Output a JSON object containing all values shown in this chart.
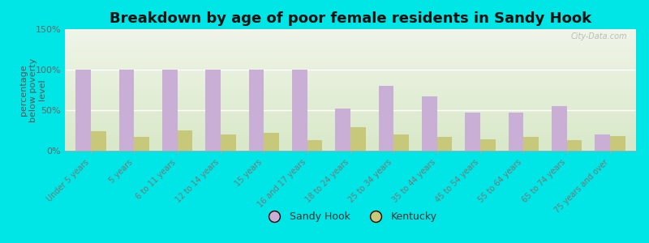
{
  "title": "Breakdown by age of poor female residents in Sandy Hook",
  "ylabel": "percentage\nbelow poverty\nlevel",
  "categories": [
    "Under 5 years",
    "5 years",
    "6 to 11 years",
    "12 to 14 years",
    "15 years",
    "16 and 17 years",
    "18 to 24 years",
    "25 to 34 years",
    "35 to 44 years",
    "45 to 54 years",
    "55 to 64 years",
    "65 to 74 years",
    "75 years and over"
  ],
  "sandy_hook": [
    100,
    100,
    100,
    100,
    100,
    100,
    52,
    80,
    67,
    47,
    47,
    55,
    20
  ],
  "kentucky": [
    24,
    17,
    25,
    20,
    22,
    13,
    29,
    20,
    17,
    14,
    17,
    13,
    18
  ],
  "sandy_hook_color": "#c9aed6",
  "kentucky_color": "#c8c87a",
  "background_color": "#00e5e5",
  "plot_bg_color_top": "#d8e8c8",
  "plot_bg_color_bottom": "#f0f5e8",
  "ylim": [
    0,
    150
  ],
  "yticks": [
    0,
    50,
    100,
    150
  ],
  "ytick_labels": [
    "0%",
    "50%",
    "100%",
    "150%"
  ],
  "title_fontsize": 13,
  "ylabel_fontsize": 8,
  "xtick_fontsize": 7,
  "ytick_fontsize": 8,
  "watermark": "City-Data.com",
  "bar_width": 0.35,
  "legend_label_1": "Sandy Hook",
  "legend_label_2": "Kentucky"
}
